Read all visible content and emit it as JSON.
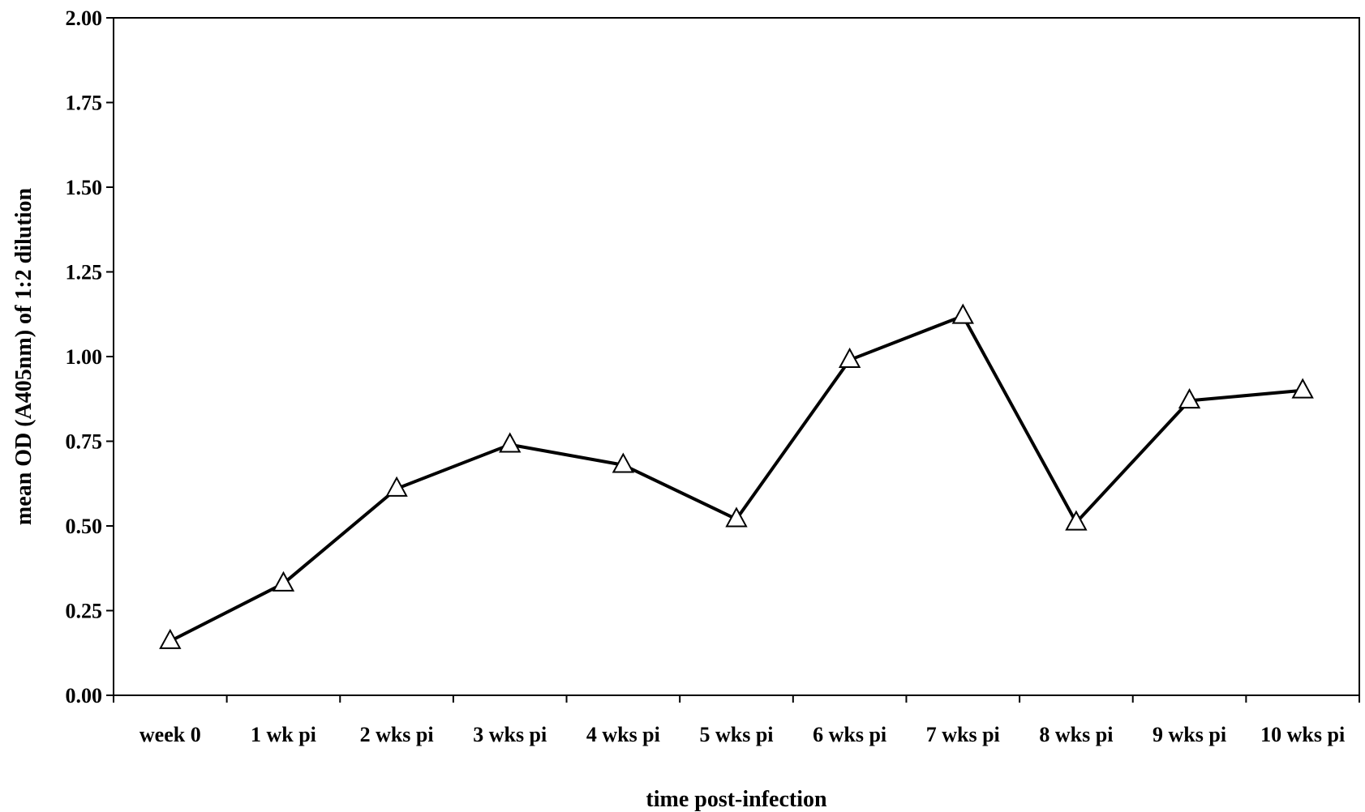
{
  "chart_data": {
    "type": "line",
    "title": "",
    "xlabel": "time post-infection",
    "ylabel": "mean OD (A405nm) of 1:2 dilution",
    "categories": [
      "week 0",
      "1 wk pi",
      "2 wks pi",
      "3 wks pi",
      "4 wks pi",
      "5 wks pi",
      "6 wks pi",
      "7 wks pi",
      "8 wks pi",
      "9 wks pi",
      "10 wks pi"
    ],
    "ylim": [
      0,
      2
    ],
    "yticks": [
      "0.00",
      "0.25",
      "0.50",
      "0.75",
      "1.00",
      "1.25",
      "1.50",
      "1.75",
      "2.00"
    ],
    "series": [
      {
        "values": [
          0.16,
          0.33,
          0.61,
          0.74,
          0.68,
          0.52,
          0.99,
          1.12,
          0.51,
          0.87,
          0.9
        ],
        "marker": "triangle-open",
        "color": "#000000"
      }
    ],
    "grid": false,
    "legend": "none"
  }
}
